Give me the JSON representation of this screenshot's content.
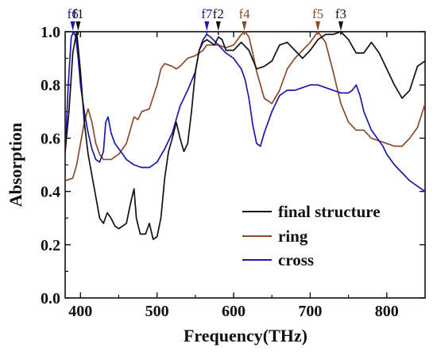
{
  "chart_data": {
    "type": "line",
    "xlabel": "Frequency(THz)",
    "ylabel": "Absorption",
    "xlim": [
      380,
      850
    ],
    "ylim": [
      0.0,
      1.0
    ],
    "x_ticks": [
      "400",
      "500",
      "600",
      "700",
      "800"
    ],
    "y_ticks": [
      "0.0",
      "0.2",
      "0.4",
      "0.6",
      "0.8",
      "1.0"
    ],
    "legend_position": "lower-right",
    "series": [
      {
        "name": "final structure",
        "color": "#111111",
        "x": [
          380,
          385,
          390,
          395,
          400,
          405,
          410,
          415,
          420,
          425,
          430,
          435,
          440,
          445,
          450,
          460,
          465,
          470,
          473,
          478,
          485,
          490,
          495,
          500,
          505,
          510,
          515,
          520,
          525,
          530,
          535,
          540,
          545,
          550,
          555,
          560,
          565,
          570,
          575,
          580,
          585,
          590,
          600,
          610,
          620,
          630,
          640,
          650,
          660,
          670,
          680,
          690,
          700,
          710,
          720,
          730,
          740,
          750,
          760,
          770,
          780,
          790,
          800,
          810,
          820,
          830,
          840,
          845,
          850
        ],
        "y": [
          0.55,
          0.7,
          0.92,
          1.0,
          0.85,
          0.66,
          0.54,
          0.46,
          0.38,
          0.3,
          0.28,
          0.32,
          0.3,
          0.27,
          0.26,
          0.28,
          0.35,
          0.41,
          0.3,
          0.24,
          0.24,
          0.28,
          0.22,
          0.23,
          0.3,
          0.45,
          0.55,
          0.6,
          0.66,
          0.6,
          0.55,
          0.58,
          0.7,
          0.85,
          0.93,
          0.96,
          0.97,
          0.96,
          0.95,
          0.98,
          0.97,
          0.93,
          0.93,
          0.96,
          0.93,
          0.86,
          0.87,
          0.89,
          0.95,
          0.96,
          0.93,
          0.9,
          0.93,
          0.97,
          0.99,
          0.99,
          1.0,
          0.97,
          0.92,
          0.92,
          0.96,
          0.92,
          0.86,
          0.8,
          0.75,
          0.78,
          0.87,
          0.88,
          0.89
        ]
      },
      {
        "name": "ring",
        "color": "#8b4a2b",
        "x": [
          380,
          390,
          395,
          400,
          405,
          410,
          415,
          420,
          425,
          430,
          440,
          450,
          460,
          465,
          470,
          475,
          480,
          490,
          500,
          505,
          510,
          520,
          525,
          530,
          540,
          550,
          560,
          565,
          570,
          580,
          590,
          600,
          605,
          610,
          615,
          620,
          625,
          630,
          640,
          650,
          660,
          670,
          680,
          690,
          700,
          705,
          710,
          715,
          720,
          730,
          740,
          750,
          760,
          770,
          780,
          790,
          800,
          810,
          820,
          830,
          840,
          850
        ],
        "y": [
          0.44,
          0.45,
          0.5,
          0.58,
          0.66,
          0.71,
          0.66,
          0.58,
          0.54,
          0.52,
          0.52,
          0.54,
          0.58,
          0.63,
          0.68,
          0.67,
          0.7,
          0.71,
          0.8,
          0.86,
          0.88,
          0.87,
          0.86,
          0.87,
          0.9,
          0.91,
          0.93,
          0.95,
          0.95,
          0.95,
          0.94,
          0.95,
          0.97,
          0.99,
          1.0,
          0.98,
          0.92,
          0.85,
          0.75,
          0.73,
          0.78,
          0.86,
          0.9,
          0.93,
          0.96,
          0.98,
          1.0,
          0.98,
          0.96,
          0.85,
          0.73,
          0.66,
          0.63,
          0.63,
          0.6,
          0.59,
          0.58,
          0.57,
          0.57,
          0.6,
          0.64,
          0.73
        ]
      },
      {
        "name": "cross",
        "color": "#1a1aa8",
        "x": [
          380,
          384,
          388,
          391,
          394,
          397,
          400,
          405,
          410,
          415,
          420,
          425,
          430,
          433,
          436,
          440,
          445,
          450,
          460,
          470,
          480,
          490,
          500,
          510,
          520,
          530,
          540,
          550,
          555,
          560,
          565,
          570,
          580,
          590,
          600,
          610,
          615,
          620,
          625,
          630,
          635,
          640,
          650,
          660,
          670,
          680,
          690,
          700,
          710,
          720,
          730,
          740,
          750,
          755,
          760,
          765,
          770,
          780,
          790,
          795,
          800,
          810,
          820,
          830,
          840,
          850
        ],
        "y": [
          0.54,
          0.8,
          0.98,
          1.0,
          0.98,
          0.9,
          0.8,
          0.7,
          0.62,
          0.56,
          0.52,
          0.51,
          0.55,
          0.66,
          0.68,
          0.62,
          0.58,
          0.56,
          0.52,
          0.5,
          0.49,
          0.49,
          0.51,
          0.56,
          0.62,
          0.72,
          0.78,
          0.85,
          0.93,
          0.97,
          0.99,
          0.98,
          0.95,
          0.92,
          0.9,
          0.86,
          0.82,
          0.75,
          0.65,
          0.58,
          0.57,
          0.62,
          0.7,
          0.76,
          0.78,
          0.78,
          0.79,
          0.8,
          0.8,
          0.79,
          0.78,
          0.77,
          0.77,
          0.78,
          0.8,
          0.76,
          0.7,
          0.63,
          0.59,
          0.57,
          0.54,
          0.5,
          0.47,
          0.44,
          0.42,
          0.4
        ]
      }
    ],
    "markers": [
      {
        "label": "f6",
        "x": 390,
        "color": "#1a1aa8"
      },
      {
        "label": "f1",
        "x": 397,
        "color": "#111111"
      },
      {
        "label": "f7",
        "x": 565,
        "color": "#1a1aa8"
      },
      {
        "label": "f2",
        "x": 580,
        "color": "#111111"
      },
      {
        "label": "f4",
        "x": 614,
        "color": "#8b4a2b"
      },
      {
        "label": "f5",
        "x": 710,
        "color": "#8b4a2b"
      },
      {
        "label": "f3",
        "x": 740,
        "color": "#111111"
      }
    ]
  }
}
